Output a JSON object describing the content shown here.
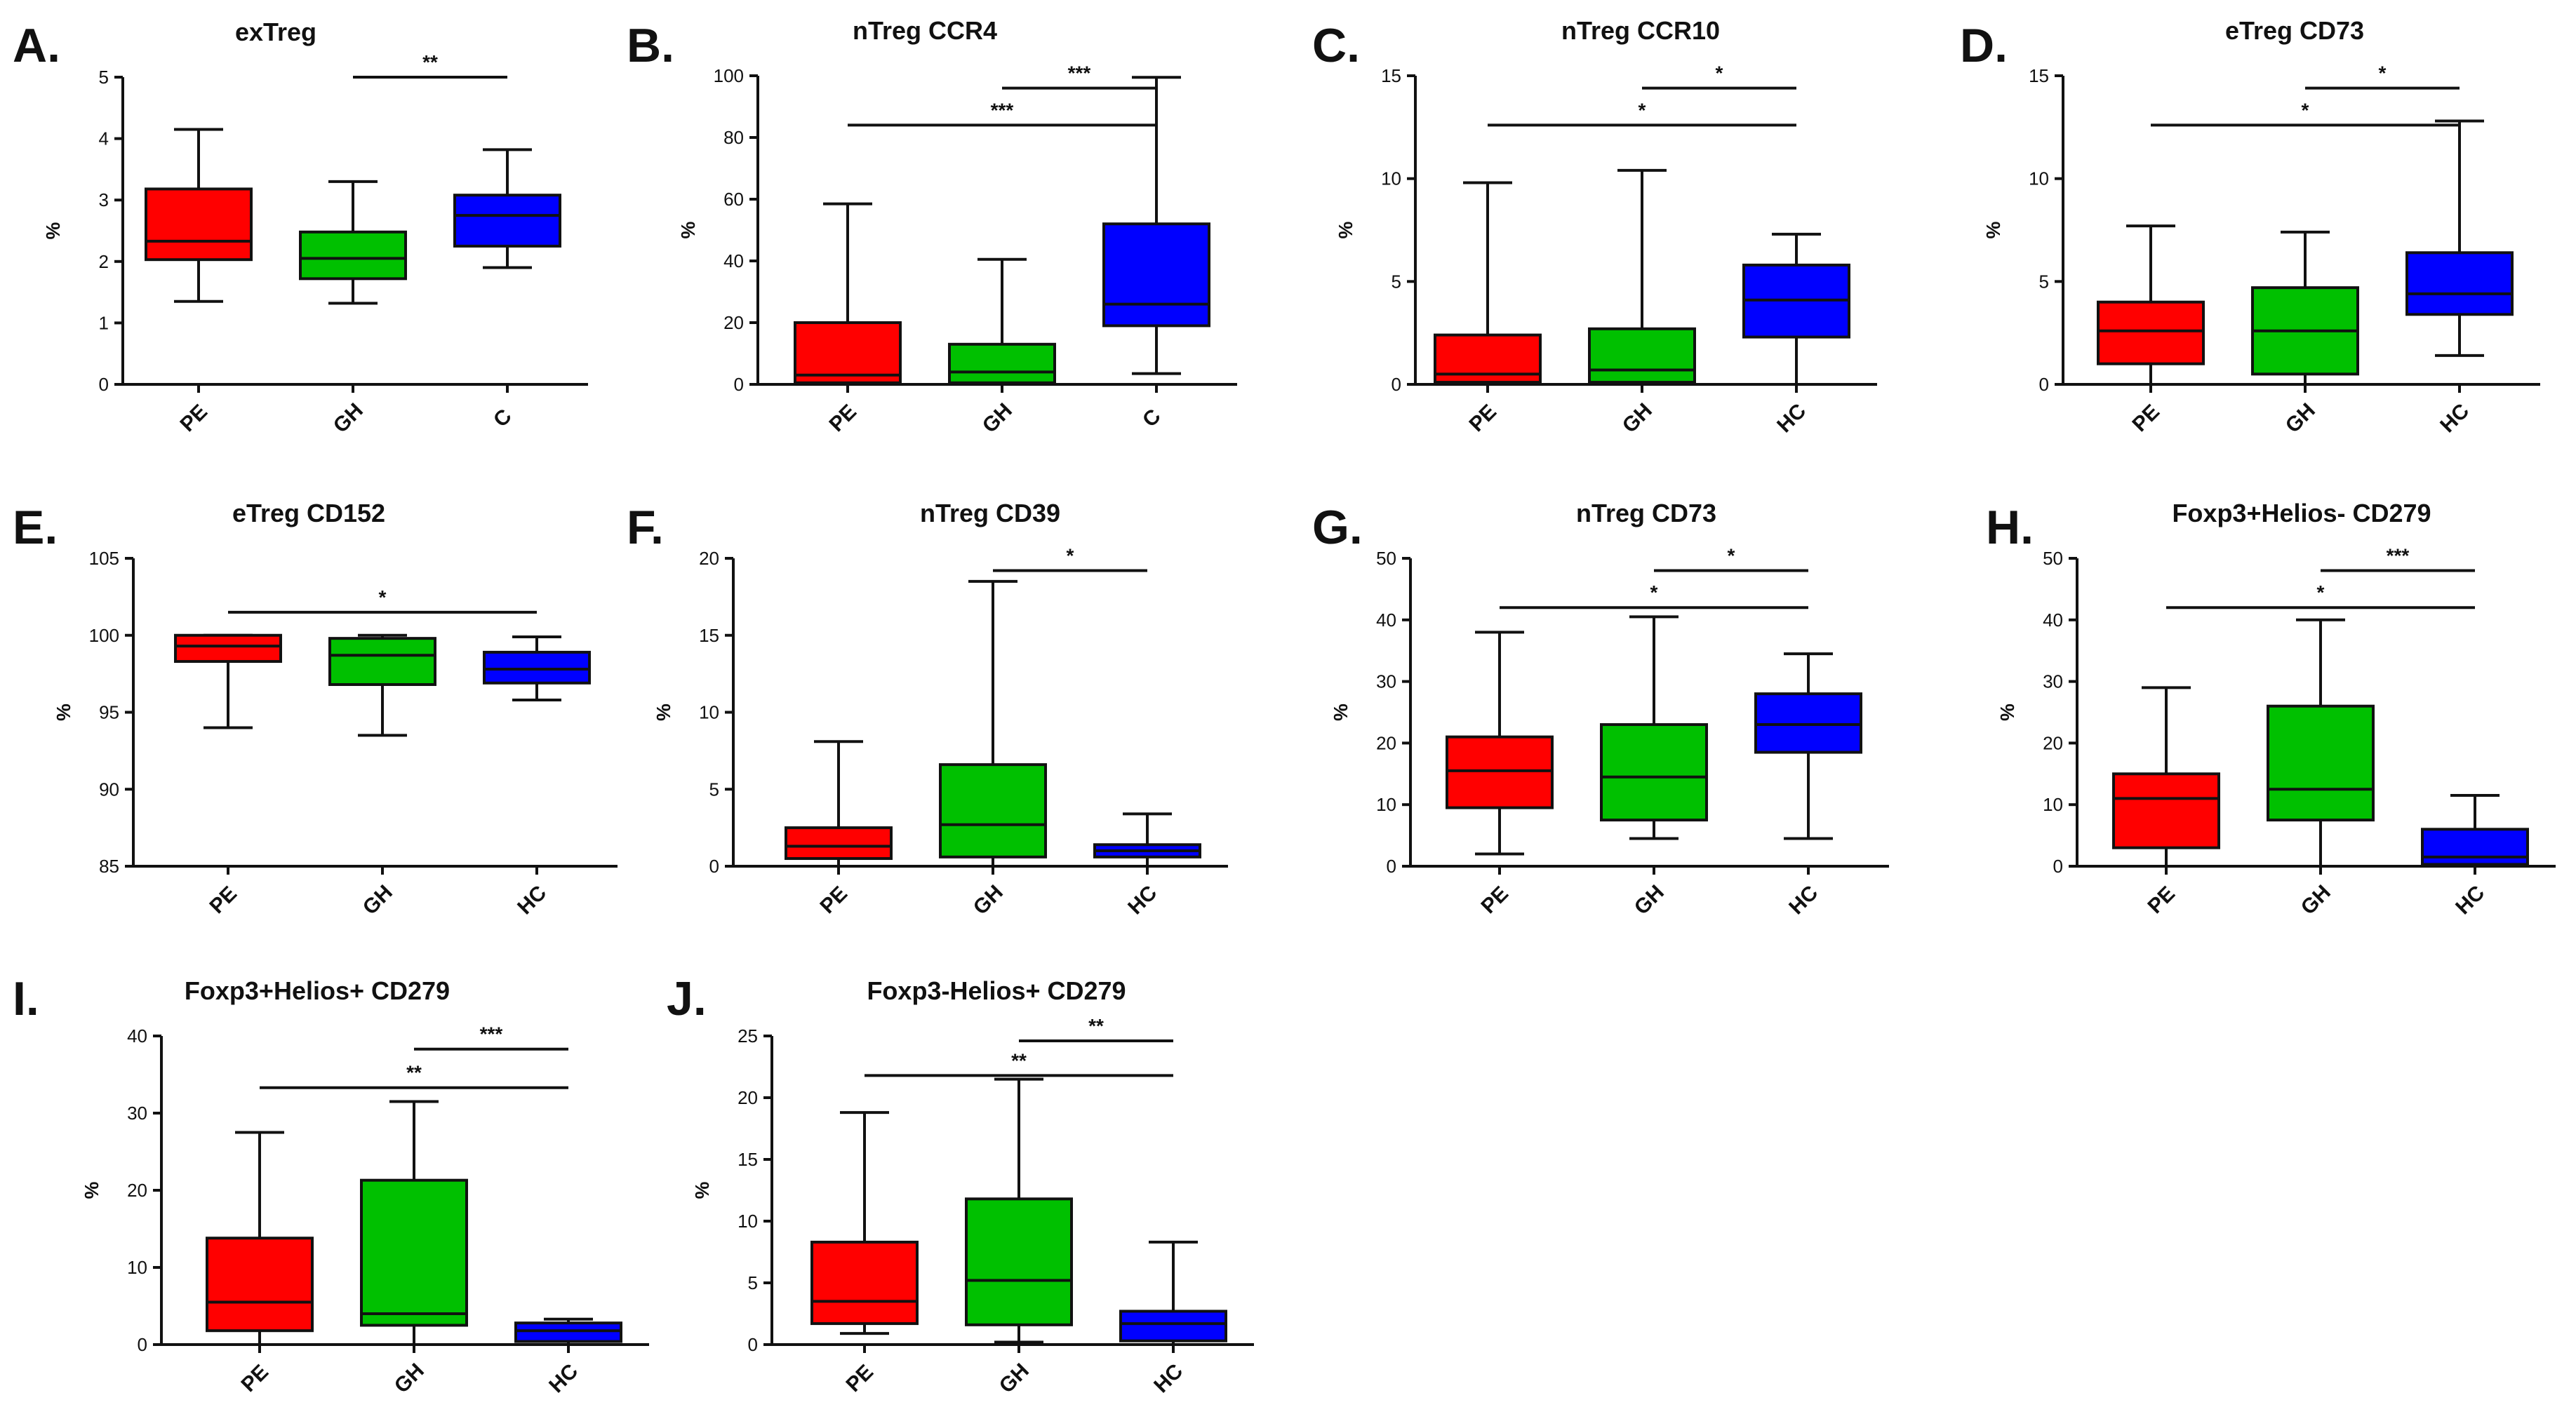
{
  "figure": {
    "background": "#ffffff",
    "group_colors": {
      "PE": "#ff0000",
      "GH": "#00c000",
      "C": "#0000ff",
      "HC": "#0000ff"
    }
  },
  "chart_data": [
    {
      "panel": "A.",
      "title": "exTreg",
      "type": "box",
      "ylabel": "%",
      "ylim": [
        0,
        5
      ],
      "yticks": [
        "0",
        "1",
        "2",
        "3",
        "4",
        "5"
      ],
      "categories": [
        "PE",
        "GH",
        "C"
      ],
      "boxes": [
        {
          "group": "PE",
          "min": 1.35,
          "q1": 2.03,
          "median": 2.33,
          "q3": 3.18,
          "max": 4.15,
          "color": "#ff0000"
        },
        {
          "group": "GH",
          "min": 1.32,
          "q1": 1.72,
          "median": 2.05,
          "q3": 2.48,
          "max": 3.3,
          "color": "#00c000"
        },
        {
          "group": "C",
          "min": 1.9,
          "q1": 2.25,
          "median": 2.75,
          "q3": 3.08,
          "max": 3.82,
          "color": "#0000ff"
        }
      ],
      "significance": [
        {
          "from": 1,
          "to": 2,
          "label": "**",
          "y": 5.0
        }
      ]
    },
    {
      "panel": "B.",
      "title": "nTreg CCR4",
      "type": "box",
      "ylabel": "%",
      "ylim": [
        0,
        100
      ],
      "yticks": [
        "0",
        "20",
        "40",
        "60",
        "80",
        "100"
      ],
      "categories": [
        "PE",
        "GH",
        "C"
      ],
      "boxes": [
        {
          "group": "PE",
          "min": 0.0,
          "q1": 0.5,
          "median": 3.0,
          "q3": 20.0,
          "max": 58.5,
          "color": "#ff0000"
        },
        {
          "group": "GH",
          "min": 0.0,
          "q1": 0.5,
          "median": 4.0,
          "q3": 13.0,
          "max": 40.5,
          "color": "#00c000"
        },
        {
          "group": "C",
          "min": 3.5,
          "q1": 19.0,
          "median": 26.0,
          "q3": 52.0,
          "max": 99.5,
          "color": "#0000ff"
        }
      ],
      "significance": [
        {
          "from": 1,
          "to": 2,
          "label": "***",
          "y": 96
        },
        {
          "from": 0,
          "to": 2,
          "label": "***",
          "y": 84
        }
      ]
    },
    {
      "panel": "C.",
      "title": "nTreg CCR10",
      "type": "box",
      "ylabel": "%",
      "ylim": [
        0,
        15
      ],
      "yticks": [
        "0",
        "5",
        "10",
        "15"
      ],
      "categories": [
        "PE",
        "GH",
        "HC"
      ],
      "boxes": [
        {
          "group": "PE",
          "min": 0.0,
          "q1": 0.1,
          "median": 0.5,
          "q3": 2.4,
          "max": 9.8,
          "color": "#ff0000"
        },
        {
          "group": "GH",
          "min": 0.0,
          "q1": 0.1,
          "median": 0.7,
          "q3": 2.7,
          "max": 10.4,
          "color": "#00c000"
        },
        {
          "group": "HC",
          "min": 0.0,
          "q1": 2.3,
          "median": 4.1,
          "q3": 5.8,
          "max": 7.3,
          "color": "#0000ff"
        }
      ],
      "significance": [
        {
          "from": 1,
          "to": 2,
          "label": "*",
          "y": 14.4
        },
        {
          "from": 0,
          "to": 2,
          "label": "*",
          "y": 12.6
        }
      ]
    },
    {
      "panel": "D.",
      "title": "eTreg CD73",
      "type": "box",
      "ylabel": "%",
      "ylim": [
        0,
        15
      ],
      "yticks": [
        "0",
        "5",
        "10",
        "15"
      ],
      "categories": [
        "PE",
        "GH",
        "HC"
      ],
      "boxes": [
        {
          "group": "PE",
          "min": 0.0,
          "q1": 1.0,
          "median": 2.6,
          "q3": 4.0,
          "max": 7.7,
          "color": "#ff0000"
        },
        {
          "group": "GH",
          "min": 0.0,
          "q1": 0.5,
          "median": 2.6,
          "q3": 4.7,
          "max": 7.4,
          "color": "#00c000"
        },
        {
          "group": "HC",
          "min": 1.4,
          "q1": 3.4,
          "median": 4.4,
          "q3": 6.4,
          "max": 12.8,
          "color": "#0000ff"
        }
      ],
      "significance": [
        {
          "from": 1,
          "to": 2,
          "label": "*",
          "y": 14.4
        },
        {
          "from": 0,
          "to": 2,
          "label": "*",
          "y": 12.6
        }
      ]
    },
    {
      "panel": "E.",
      "title": "eTreg CD152",
      "type": "box",
      "ylabel": "%",
      "ylim": [
        85,
        105
      ],
      "yticks": [
        "85",
        "90",
        "95",
        "100",
        "105"
      ],
      "categories": [
        "PE",
        "GH",
        "HC"
      ],
      "boxes": [
        {
          "group": "PE",
          "min": 94.0,
          "q1": 98.3,
          "median": 99.3,
          "q3": 100.0,
          "max": 100.0,
          "color": "#ff0000"
        },
        {
          "group": "GH",
          "min": 93.5,
          "q1": 96.8,
          "median": 98.7,
          "q3": 99.8,
          "max": 100.0,
          "color": "#00c000"
        },
        {
          "group": "HC",
          "min": 95.8,
          "q1": 96.9,
          "median": 97.8,
          "q3": 98.9,
          "max": 99.9,
          "color": "#0000ff"
        }
      ],
      "significance": [
        {
          "from": 0,
          "to": 2,
          "label": "*",
          "y": 101.5
        }
      ]
    },
    {
      "panel": "F.",
      "title": "nTreg CD39",
      "type": "box",
      "ylabel": "%",
      "ylim": [
        0,
        20
      ],
      "yticks": [
        "0",
        "5",
        "10",
        "15",
        "20"
      ],
      "categories": [
        "PE",
        "GH",
        "HC"
      ],
      "boxes": [
        {
          "group": "PE",
          "min": 0.0,
          "q1": 0.5,
          "median": 1.3,
          "q3": 2.5,
          "max": 8.1,
          "color": "#ff0000"
        },
        {
          "group": "GH",
          "min": 0.0,
          "q1": 0.6,
          "median": 2.7,
          "q3": 6.6,
          "max": 18.5,
          "color": "#00c000"
        },
        {
          "group": "HC",
          "min": 0.0,
          "q1": 0.6,
          "median": 1.0,
          "q3": 1.4,
          "max": 3.4,
          "color": "#0000ff"
        }
      ],
      "significance": [
        {
          "from": 1,
          "to": 2,
          "label": "*",
          "y": 19.2
        }
      ]
    },
    {
      "panel": "G.",
      "title": "nTreg CD73",
      "type": "box",
      "ylabel": "%",
      "ylim": [
        0,
        50
      ],
      "yticks": [
        "0",
        "10",
        "20",
        "30",
        "40",
        "50"
      ],
      "categories": [
        "PE",
        "GH",
        "HC"
      ],
      "boxes": [
        {
          "group": "PE",
          "min": 2.0,
          "q1": 9.5,
          "median": 15.5,
          "q3": 21.0,
          "max": 38.0,
          "color": "#ff0000"
        },
        {
          "group": "GH",
          "min": 4.5,
          "q1": 7.5,
          "median": 14.5,
          "q3": 23.0,
          "max": 40.5,
          "color": "#00c000"
        },
        {
          "group": "HC",
          "min": 4.5,
          "q1": 18.5,
          "median": 23.0,
          "q3": 28.0,
          "max": 34.5,
          "color": "#0000ff"
        }
      ],
      "significance": [
        {
          "from": 1,
          "to": 2,
          "label": "*",
          "y": 48
        },
        {
          "from": 0,
          "to": 2,
          "label": "*",
          "y": 42
        }
      ]
    },
    {
      "panel": "H.",
      "title": "Foxp3+Helios- CD279",
      "type": "box",
      "ylabel": "%",
      "ylim": [
        0,
        50
      ],
      "yticks": [
        "0",
        "10",
        "20",
        "30",
        "40",
        "50"
      ],
      "categories": [
        "PE",
        "GH",
        "HC"
      ],
      "boxes": [
        {
          "group": "PE",
          "min": 0.0,
          "q1": 3.0,
          "median": 11.0,
          "q3": 15.0,
          "max": 29.0,
          "color": "#ff0000"
        },
        {
          "group": "GH",
          "min": 0.0,
          "q1": 7.5,
          "median": 12.5,
          "q3": 26.0,
          "max": 40.0,
          "color": "#00c000"
        },
        {
          "group": "HC",
          "min": 0.0,
          "q1": 0.3,
          "median": 1.5,
          "q3": 6.0,
          "max": 11.5,
          "color": "#0000ff"
        }
      ],
      "significance": [
        {
          "from": 1,
          "to": 2,
          "label": "***",
          "y": 48
        },
        {
          "from": 0,
          "to": 2,
          "label": "*",
          "y": 42
        }
      ]
    },
    {
      "panel": "I.",
      "title": "Foxp3+Helios+ CD279",
      "type": "box",
      "ylabel": "%",
      "ylim": [
        0,
        40
      ],
      "yticks": [
        "0",
        "10",
        "20",
        "30",
        "40"
      ],
      "categories": [
        "PE",
        "GH",
        "HC"
      ],
      "boxes": [
        {
          "group": "PE",
          "min": 0.0,
          "q1": 1.8,
          "median": 5.5,
          "q3": 13.8,
          "max": 27.5,
          "color": "#ff0000"
        },
        {
          "group": "GH",
          "min": 0.0,
          "q1": 2.5,
          "median": 4.0,
          "q3": 21.3,
          "max": 31.5,
          "color": "#00c000"
        },
        {
          "group": "HC",
          "min": 0.0,
          "q1": 0.4,
          "median": 1.8,
          "q3": 2.8,
          "max": 3.3,
          "color": "#0000ff"
        }
      ],
      "significance": [
        {
          "from": 1,
          "to": 2,
          "label": "***",
          "y": 38.3
        },
        {
          "from": 0,
          "to": 2,
          "label": "**",
          "y": 33.3
        }
      ]
    },
    {
      "panel": "J.",
      "title": "Foxp3-Helios+ CD279",
      "type": "box",
      "ylabel": "%",
      "ylim": [
        0,
        25
      ],
      "yticks": [
        "0",
        "5",
        "10",
        "15",
        "20",
        "25"
      ],
      "categories": [
        "PE",
        "GH",
        "HC"
      ],
      "boxes": [
        {
          "group": "PE",
          "min": 0.9,
          "q1": 1.7,
          "median": 3.5,
          "q3": 8.3,
          "max": 18.8,
          "color": "#ff0000"
        },
        {
          "group": "GH",
          "min": 0.2,
          "q1": 1.6,
          "median": 5.2,
          "q3": 11.8,
          "max": 21.5,
          "color": "#00c000"
        },
        {
          "group": "HC",
          "min": 0.0,
          "q1": 0.3,
          "median": 1.7,
          "q3": 2.7,
          "max": 8.3,
          "color": "#0000ff"
        }
      ],
      "significance": [
        {
          "from": 1,
          "to": 2,
          "label": "**",
          "y": 24.6
        },
        {
          "from": 0,
          "to": 2,
          "label": "**",
          "y": 21.8
        }
      ]
    }
  ]
}
